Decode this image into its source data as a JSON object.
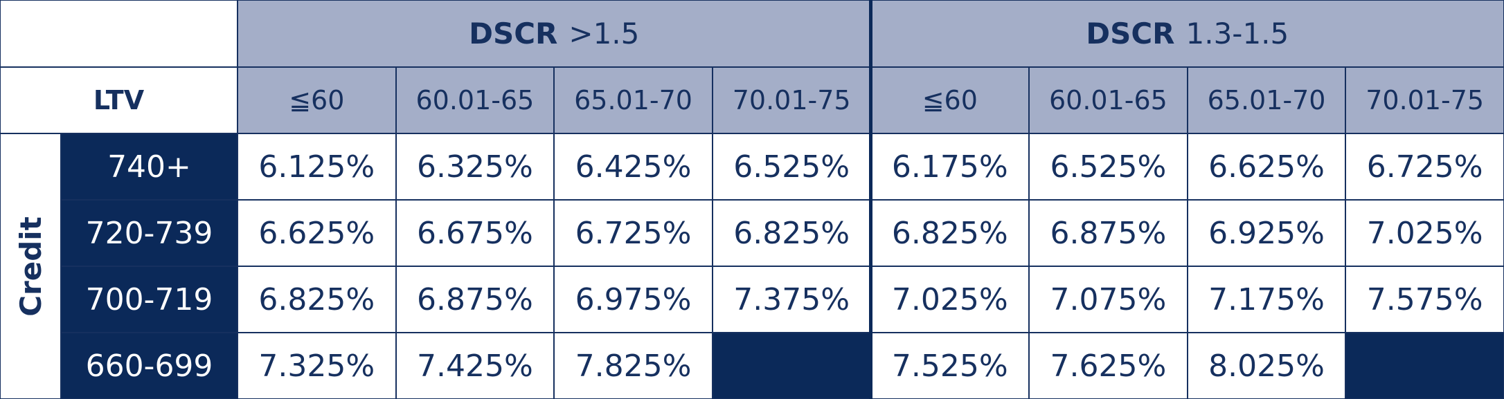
{
  "table": {
    "corner_label": "LTV",
    "side_label": "Credit",
    "groups": [
      {
        "label": "DSCR",
        "range": ">1.5",
        "columns": [
          "≦60",
          "60.01-65",
          "65.01-70",
          "70.01-75"
        ]
      },
      {
        "label": "DSCR",
        "range": "1.3-1.5",
        "columns": [
          "≦60",
          "60.01-65",
          "65.01-70",
          "70.01-75"
        ]
      }
    ],
    "rows": [
      {
        "label": "740+",
        "values": [
          "6.125%",
          "6.325%",
          "6.425%",
          "6.525%",
          "6.175%",
          "6.525%",
          "6.625%",
          "6.725%"
        ]
      },
      {
        "label": "720-739",
        "values": [
          "6.625%",
          "6.675%",
          "6.725%",
          "6.825%",
          "6.825%",
          "6.875%",
          "6.925%",
          "7.025%"
        ]
      },
      {
        "label": "700-719",
        "values": [
          "6.825%",
          "6.875%",
          "6.975%",
          "7.375%",
          "7.025%",
          "7.075%",
          "7.175%",
          "7.575%"
        ]
      },
      {
        "label": "660-699",
        "values": [
          "7.325%",
          "7.425%",
          "7.825%",
          null,
          "7.525%",
          "7.625%",
          "8.025%",
          null
        ]
      }
    ]
  }
}
